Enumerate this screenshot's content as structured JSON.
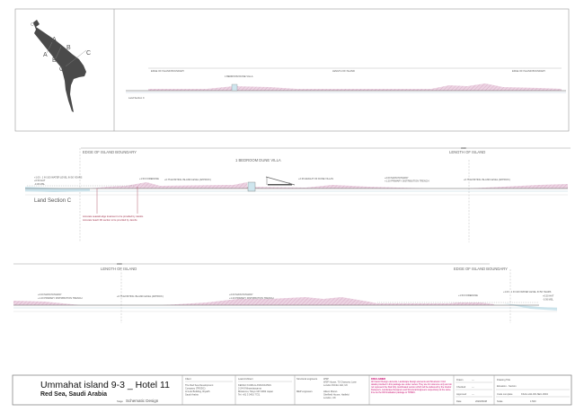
{
  "key_plan": {
    "section_marks": [
      "A",
      "A",
      "B",
      "B",
      "C",
      "C"
    ]
  },
  "overview_section": {
    "labels": [
      "EDGE OF ISLAND BOUNDARY",
      "1 BEDROOM DUNE VILLA",
      "LENGTH OF ISLAND",
      "EDGE OF ISLAND BOUNDARY"
    ],
    "title": "Land Section C"
  },
  "section_upper": {
    "boundary_label": "EDGE OF ISLAND BOUNDARY",
    "villa_label": "1 BEDROOM DUNE VILLA",
    "length_label": "LENGTH OF ISLAND",
    "dimension": "3000",
    "title": "Land Section C",
    "level_labels": [
      "+1.00 : 1 IN 100 WATER LEVEL IN 50 YEARS",
      "+0.50 HAT",
      "-0.36 MSL"
    ],
    "annotations": [
      "+1.50 FOREDUNE",
      "+0.75 EXISTING ISLAND LEVEL (APPROX.)",
      "+2.36 HEIGHT OF DUNE VILLAS",
      "+2.00 MAIN PATHWAY",
      "+1.20 PRIMARY DISTRIBUTION TRENCH",
      "+0.75 EXISTING ISLAND LEVEL (APPROX.)"
    ],
    "notes": [
      "Accurate seawall edge treatment to be provided by Jacobs",
      "Accurate beach lift/ section to be provided by Jacobs"
    ]
  },
  "section_lower": {
    "length_label": "LENGTH OF ISLAND",
    "boundary_label": "EDGE OF ISLAND BOUNDARY",
    "dimension": "3000",
    "annotations": [
      "+2.00 MAIN PATHWAY",
      "+1.20 PRIMARY DISTRIBUTION TRENCH",
      "+0.75 EXISTING ISLAND LEVEL (APPROX.)",
      "+2.00 MAIN PATHWAY",
      "+1.20 PRIMARY DISTRIBUTION TRENCH",
      "+1.50 FOREDUNE",
      "+1.00 : 1 IN 100 WATER LEVEL IN 50 YEARS",
      "+0.50 HAT",
      "-0.36 MSL"
    ]
  },
  "title_block": {
    "project": "Ummahat island 9-3 _ Hotel 11",
    "location": "Red Sea, Saudi Arabia",
    "stage_label": "Stage",
    "stage": "Schematic Design",
    "client_heading": "Client",
    "client_lines": [
      "The Red Sea Development",
      "Company (TRSDC)",
      "Al Lulu Building, Riyadh",
      "Saudi Arabia"
    ],
    "architect_heading": "Lead Architect",
    "architect_lines": [
      "KENGO KUMA & ASSOCIATES",
      "2-24-8 Minamiaoyama",
      "Minato-ku, Tokyo 107-0062 Japan",
      "Tel: +81 3 3401 7721"
    ],
    "structural_heading": "Structural engineers",
    "structural_lines": [
      "WSP",
      "WSP House, 70 Chancery Lane",
      "London WC2A 1AF, UK"
    ],
    "mep_heading": "MEP engineers",
    "mep_lines": [
      "Hilson Moran",
      "Sheffield House, Hatfield",
      "London, UK"
    ],
    "disclaimer_heading": "DISCLAIMER",
    "disclaimer": "All Interior Design elements, Landscape Design elements and Structural / Civil details provided in this package are under review. They are for reference only and do not represent the final fully coordinated version which will be delivered by the Interior Designers, Landscape Designers and Structural Engineers respectively at the same time as the DD finalisation package to TRSDC.",
    "fields": [
      {
        "label": "Drawn",
        "value": "---"
      },
      {
        "label": "Checked",
        "value": "---"
      },
      {
        "label": "Approved",
        "value": "---"
      },
      {
        "label": "Date",
        "value": "2020/06/08"
      }
    ],
    "drawing_title_label": "Drawing Title",
    "drawing_title": "Elevation - Section",
    "code_label": "Code complete",
    "code": "KKAA-H11-DD-SEC-0004",
    "scale_label": "Scale",
    "scale": "1:500"
  },
  "colors": {
    "land_fill": "#e8c8dc",
    "land_hatch": "#c890b0",
    "water": "#cfe6ee",
    "annotation_red": "#a0304a",
    "disclaimer": "#c8006a",
    "island_plan": "#444444"
  }
}
